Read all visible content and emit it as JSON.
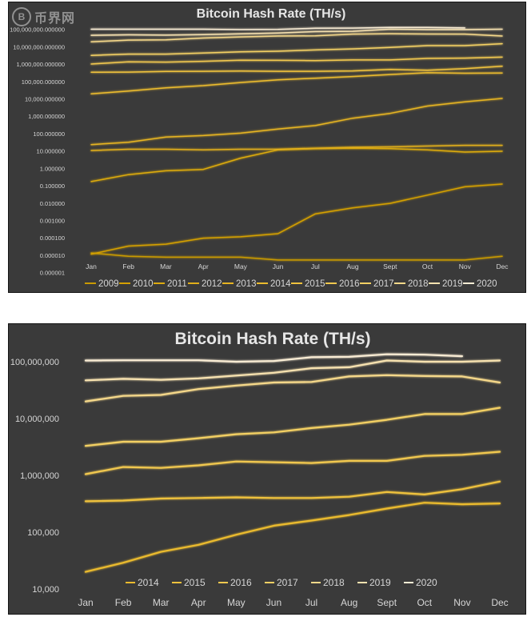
{
  "watermark": {
    "mark": "B",
    "text": "币界网"
  },
  "chart_data": [
    {
      "type": "line",
      "title": "Bitcoin Hash Rate (TH/s)",
      "yscale": "log",
      "ylim": [
        1e-06,
        100000000
      ],
      "yticks": [
        100000000,
        10000000,
        1000000,
        100000,
        10000,
        1000,
        100,
        10,
        1,
        0.1,
        0.01,
        0.001,
        0.0001,
        1e-05,
        1e-06
      ],
      "ytick_labels": [
        "100,000,000.000000",
        "10,000,000.000000",
        "1,000,000.000000",
        "100,000.000000",
        "10,000.000000",
        "1,000.000000",
        "100.000000",
        "10.000000",
        "1.000000",
        "0.100000",
        "0.010000",
        "0.001000",
        "0.000100",
        "0.000010",
        "0.000001"
      ],
      "categories": [
        "Jan",
        "Feb",
        "Mar",
        "Apr",
        "May",
        "Jun",
        "Jul",
        "Aug",
        "Sept",
        "Oct",
        "Nov",
        "Dec"
      ],
      "legend_position": "bottom",
      "grid": false,
      "series": [
        {
          "name": "2009",
          "color": "#c99a00",
          "values": [
            1.4e-05,
            9e-06,
            8e-06,
            8e-06,
            8e-06,
            5.5e-06,
            5.5e-06,
            5.5e-06,
            5.5e-06,
            5.5e-06,
            5.5e-06,
            9e-06
          ]
        },
        {
          "name": "2010",
          "color": "#d4a000",
          "values": [
            1.2e-05,
            3.5e-05,
            4.5e-05,
            0.0001,
            0.00012,
            0.00018,
            0.0025,
            0.0055,
            0.01,
            0.03,
            0.09,
            0.13
          ]
        },
        {
          "name": "2011",
          "color": "#dcaa10",
          "values": [
            0.18,
            0.45,
            0.75,
            0.9,
            4,
            12,
            14,
            15,
            14,
            12,
            9,
            10
          ]
        },
        {
          "name": "2012",
          "color": "#e0ae1a",
          "values": [
            11,
            13,
            13,
            12,
            13,
            13,
            15,
            17,
            18,
            20,
            22,
            22
          ]
        },
        {
          "name": "2013",
          "color": "#e6b422",
          "values": [
            24,
            33,
            65,
            80,
            110,
            190,
            300,
            800,
            1500,
            4000,
            7000,
            11000
          ]
        },
        {
          "name": "2014",
          "color": "#ebbb2e",
          "values": [
            20000,
            29000,
            45000,
            60000,
            90000,
            130000,
            160000,
            200000,
            260000,
            330000,
            310000,
            320000
          ]
        },
        {
          "name": "2015",
          "color": "#efc23e",
          "values": [
            350000,
            360000,
            390000,
            400000,
            410000,
            400000,
            400000,
            420000,
            510000,
            460000,
            570000,
            780000
          ]
        },
        {
          "name": "2016",
          "color": "#f1c84f",
          "values": [
            1050000,
            1400000,
            1350000,
            1500000,
            1750000,
            1700000,
            1650000,
            1800000,
            1800000,
            2200000,
            2300000,
            2600000
          ]
        },
        {
          "name": "2017",
          "color": "#f3d064",
          "values": [
            3300000,
            3900000,
            3900000,
            4500000,
            5300000,
            5700000,
            6800000,
            7800000,
            9500000,
            12000000,
            12000000,
            15500000
          ]
        },
        {
          "name": "2018",
          "color": "#f5d88a",
          "values": [
            20000000,
            25000000,
            26000000,
            33000000,
            38000000,
            43000000,
            44000000,
            55000000,
            58000000,
            56000000,
            55000000,
            43000000
          ]
        },
        {
          "name": "2019",
          "color": "#f7e2b0",
          "values": [
            47000000,
            50000000,
            48000000,
            51000000,
            57000000,
            64000000,
            77000000,
            80000000,
            105000000,
            100000000,
            100000000,
            105000000
          ]
        },
        {
          "name": "2020",
          "color": "#f9ecd4",
          "values": [
            105000000,
            106000000,
            106000000,
            106000000,
            100000000,
            103000000,
            120000000,
            122000000,
            135000000,
            133000000,
            125000000,
            null
          ]
        }
      ]
    },
    {
      "type": "line",
      "title": "Bitcoin Hash Rate (TH/s)",
      "yscale": "log",
      "ylim": [
        10000,
        100000000
      ],
      "yticks": [
        100000000,
        10000000,
        1000000,
        100000,
        10000
      ],
      "ytick_labels": [
        "100,000,000",
        "10,000,000",
        "1,000,000",
        "100,000",
        "10,000"
      ],
      "categories": [
        "Jan",
        "Feb",
        "Mar",
        "Apr",
        "May",
        "Jun",
        "Jul",
        "Aug",
        "Sept",
        "Oct",
        "Nov",
        "Dec"
      ],
      "legend_position": "bottom",
      "grid": false,
      "series": [
        {
          "name": "2014",
          "color": "#ebbb2e",
          "values": [
            20000,
            29000,
            45000,
            60000,
            90000,
            130000,
            160000,
            200000,
            260000,
            330000,
            310000,
            320000
          ]
        },
        {
          "name": "2015",
          "color": "#efc23e",
          "values": [
            350000,
            360000,
            390000,
            400000,
            410000,
            400000,
            400000,
            420000,
            510000,
            460000,
            570000,
            780000
          ]
        },
        {
          "name": "2016",
          "color": "#f1c84f",
          "values": [
            1050000,
            1400000,
            1350000,
            1500000,
            1750000,
            1700000,
            1650000,
            1800000,
            1800000,
            2200000,
            2300000,
            2600000
          ]
        },
        {
          "name": "2017",
          "color": "#f3d064",
          "values": [
            3300000,
            3900000,
            3900000,
            4500000,
            5300000,
            5700000,
            6800000,
            7800000,
            9500000,
            12000000,
            12000000,
            15500000
          ]
        },
        {
          "name": "2018",
          "color": "#f5d88a",
          "values": [
            20000000,
            25000000,
            26000000,
            33000000,
            38000000,
            43000000,
            44000000,
            55000000,
            58000000,
            56000000,
            55000000,
            43000000
          ]
        },
        {
          "name": "2019",
          "color": "#f7e2b0",
          "values": [
            47000000,
            50000000,
            48000000,
            51000000,
            57000000,
            64000000,
            77000000,
            80000000,
            105000000,
            100000000,
            100000000,
            105000000
          ]
        },
        {
          "name": "2020",
          "color": "#f9ecd4",
          "values": [
            105000000,
            106000000,
            106000000,
            106000000,
            100000000,
            103000000,
            120000000,
            122000000,
            135000000,
            133000000,
            125000000,
            null
          ]
        }
      ]
    }
  ]
}
